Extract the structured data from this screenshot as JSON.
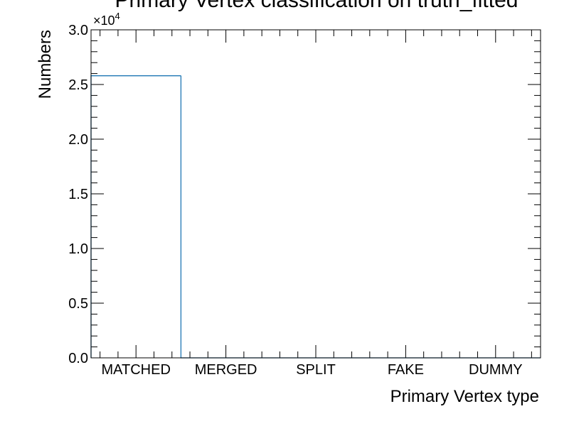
{
  "chart_data": {
    "type": "bar",
    "title": "Primary Vertex classification on truth_fitted",
    "xlabel": "Primary Vertex type",
    "ylabel": "Numbers",
    "categories": [
      "MATCHED",
      "MERGED",
      "SPLIT",
      "FAKE",
      "DUMMY"
    ],
    "values": [
      25800,
      0,
      0,
      0,
      0
    ],
    "ylim": [
      0,
      30000
    ],
    "y_ticks": [
      0.0,
      0.5,
      1.0,
      1.5,
      2.0,
      2.5,
      3.0
    ],
    "y_tick_labels": [
      "0.0",
      "0.5",
      "1.0",
      "1.5",
      "2.0",
      "2.5",
      "3.0"
    ],
    "y_multiplier_base": "×10",
    "y_multiplier_exp": "4",
    "style": "step-histogram",
    "grid": false,
    "series_color": "#1f77b4"
  }
}
